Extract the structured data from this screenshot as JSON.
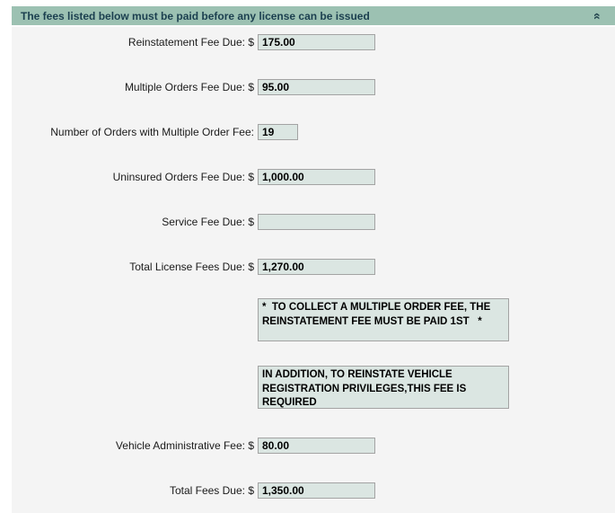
{
  "header": {
    "title": "The fees listed below must be paid before any license can be issued",
    "collapse_icon": "chevron-double-up"
  },
  "colors": {
    "header_bg": "#9cc1b2",
    "header_text": "#1b3f4f",
    "body_bg": "#f4f4f4",
    "field_bg": "#dbe6e2",
    "field_border": "#a3a3a3"
  },
  "form": {
    "fields": [
      {
        "label": "Reinstatement Fee Due: $",
        "value": "175.00"
      },
      {
        "label": "Multiple Orders Fee Due: $",
        "value": "95.00"
      },
      {
        "label": "Number of Orders with Multiple Order Fee:",
        "value": "19"
      },
      {
        "label": "Uninsured Orders Fee Due: $",
        "value": "1,000.00"
      },
      {
        "label": "Service Fee Due: $",
        "value": ""
      },
      {
        "label": "Total License Fees Due: $",
        "value": "1,270.00"
      },
      {
        "label": "Vehicle Administrative Fee: $",
        "value": "80.00"
      },
      {
        "label": "Total Fees Due: $",
        "value": "1,350.00"
      }
    ],
    "notes": [
      "*  TO COLLECT A MULTIPLE ORDER FEE, THE REINSTATEMENT FEE MUST BE PAID 1ST   *",
      "IN ADDITION, TO REINSTATE VEHICLE REGISTRATION PRIVILEGES,THIS FEE IS REQUIRED"
    ]
  }
}
